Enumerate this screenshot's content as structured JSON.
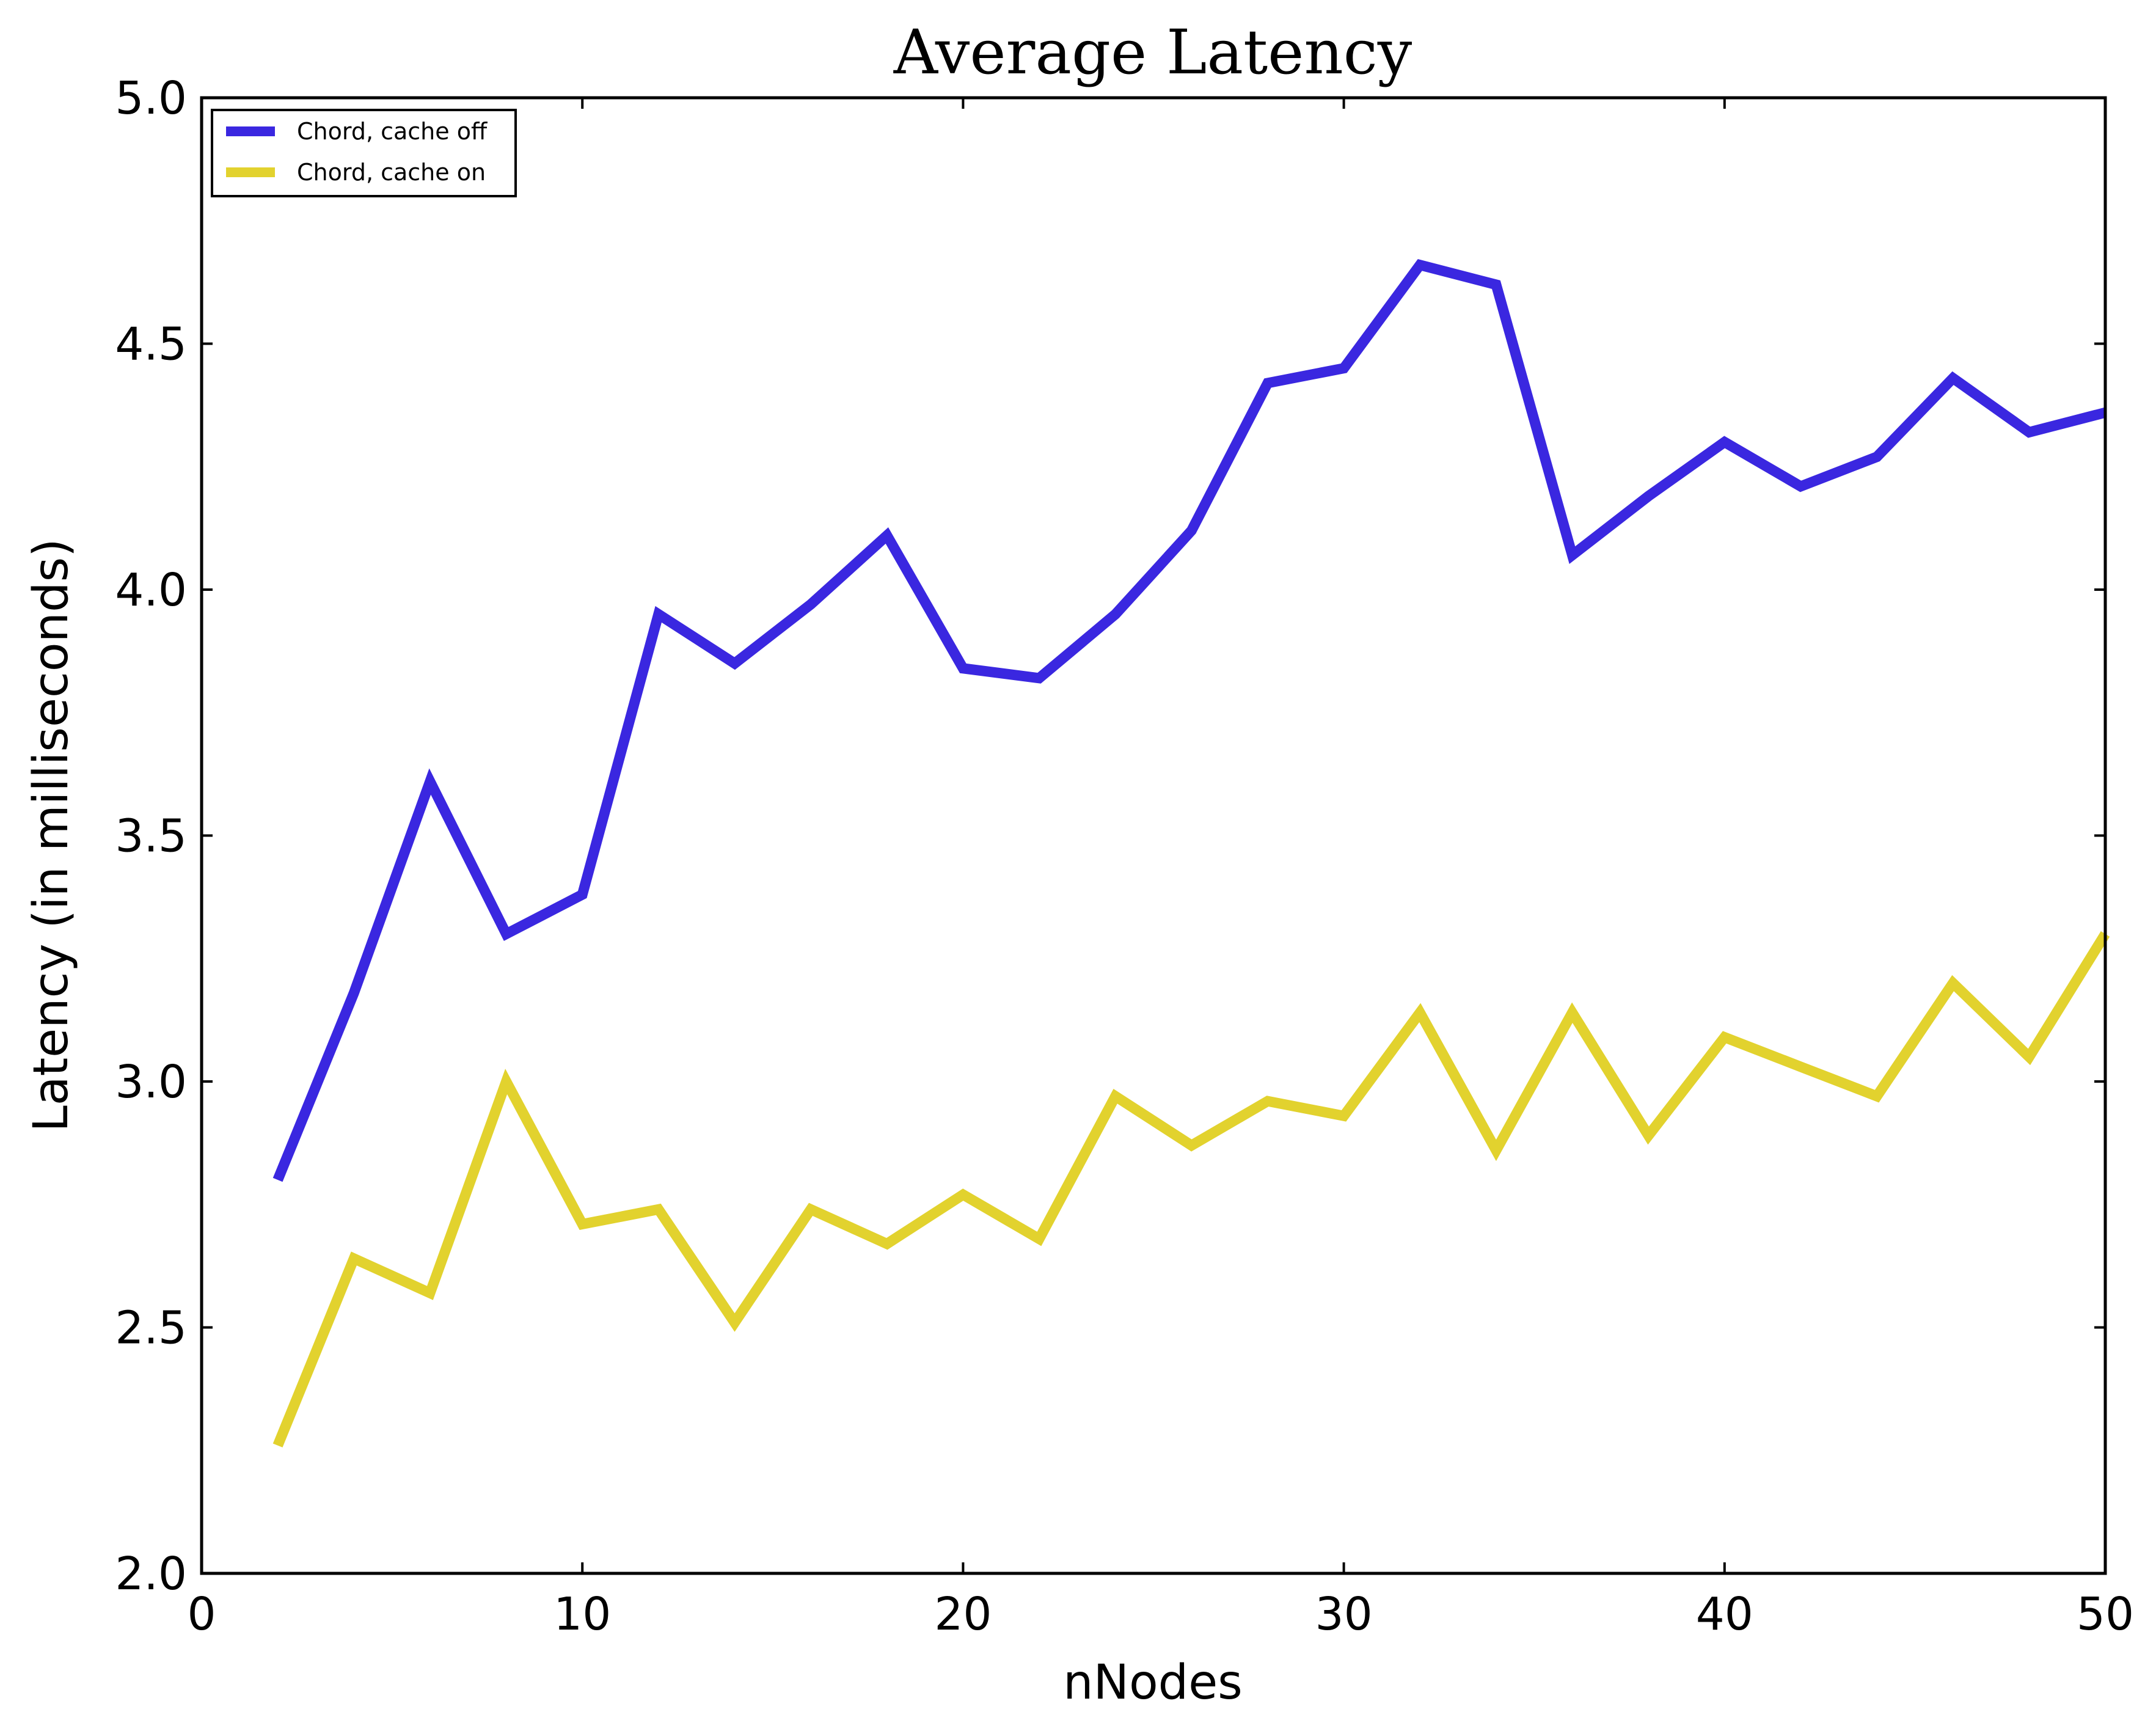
{
  "chart_data": {
    "type": "line",
    "title": "Average Latency",
    "xlabel": "nNodes",
    "ylabel": "Latency (in milliseconds)",
    "xlim": [
      0,
      50
    ],
    "ylim": [
      2.0,
      5.0
    ],
    "x_ticks": [
      0,
      10,
      20,
      30,
      40,
      50
    ],
    "x_tick_labels": [
      "0",
      "10",
      "20",
      "30",
      "40",
      "50"
    ],
    "y_ticks": [
      2.0,
      2.5,
      3.0,
      3.5,
      4.0,
      4.5,
      5.0
    ],
    "y_tick_labels": [
      "2.0",
      "2.5",
      "3.0",
      "3.5",
      "4.0",
      "4.5",
      "5.0"
    ],
    "grid": false,
    "legend_position": "top-left",
    "x": [
      2,
      4,
      6,
      8,
      10,
      12,
      14,
      16,
      18,
      20,
      22,
      24,
      26,
      28,
      30,
      32,
      34,
      36,
      38,
      40,
      42,
      44,
      46,
      48,
      50
    ],
    "series": [
      {
        "name": "Chord, cache off",
        "color": "#3a27e0",
        "values": [
          2.8,
          3.18,
          3.61,
          3.3,
          3.38,
          3.95,
          3.85,
          3.97,
          4.11,
          3.84,
          3.82,
          3.95,
          4.12,
          4.42,
          4.45,
          4.66,
          4.62,
          4.07,
          4.19,
          4.3,
          4.21,
          4.27,
          4.43,
          4.32,
          4.36
        ]
      },
      {
        "name": "Chord, cache on",
        "color": "#e2d22e",
        "values": [
          2.26,
          2.64,
          2.57,
          3.0,
          2.71,
          2.74,
          2.51,
          2.74,
          2.67,
          2.77,
          2.68,
          2.97,
          2.87,
          2.96,
          2.93,
          3.14,
          2.86,
          3.14,
          2.89,
          3.09,
          3.03,
          2.97,
          3.2,
          3.05,
          3.3
        ]
      }
    ]
  }
}
